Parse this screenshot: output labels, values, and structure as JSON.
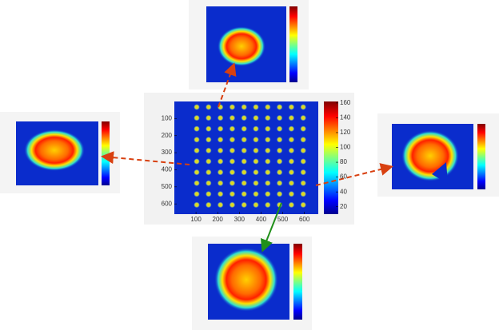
{
  "chart_data": {
    "type": "heatmap",
    "xlim": [
      0,
      664
    ],
    "ylim": [
      0,
      660
    ],
    "xticks": [
      100,
      200,
      300,
      400,
      500,
      600
    ],
    "yticks": [
      100,
      200,
      300,
      400,
      500,
      600
    ],
    "colorbar": {
      "lim": [
        10,
        162
      ],
      "ticks": [
        20,
        40,
        60,
        80,
        100,
        120,
        140,
        160
      ]
    }
  }
}
